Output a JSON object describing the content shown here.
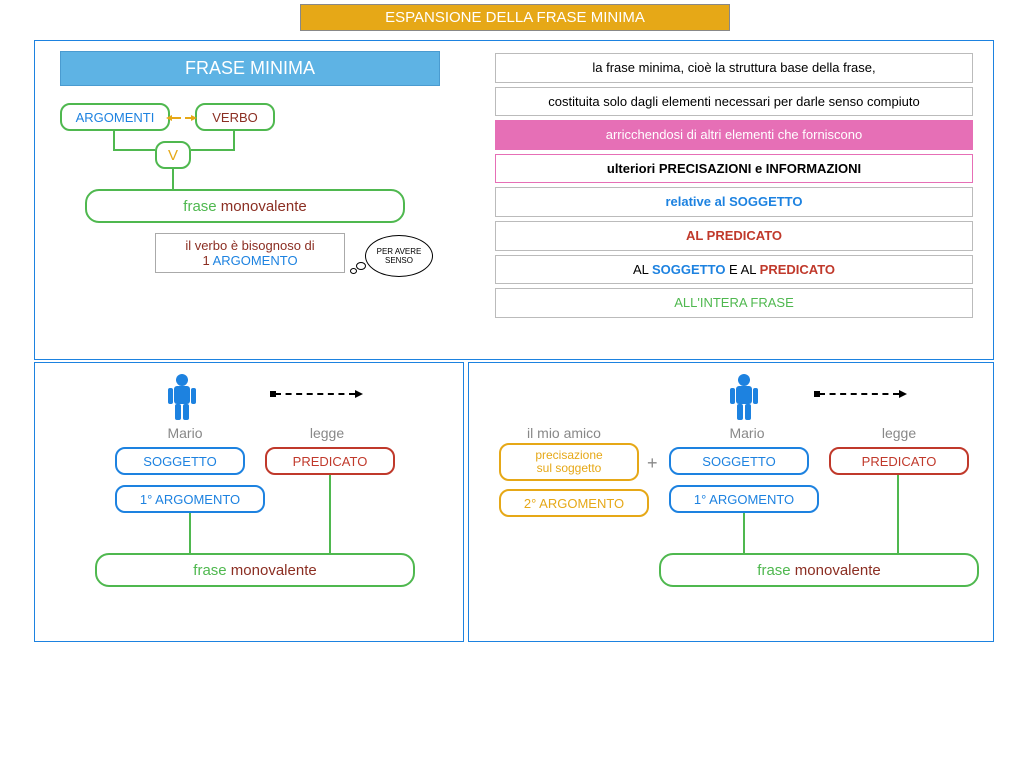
{
  "colors": {
    "banner_bg": "#e6a817",
    "panel_border": "#1d82e0",
    "frase_bg": "#5eb3e4",
    "green": "#4fb84f",
    "blue": "#1d82e0",
    "red": "#c0392b",
    "orange": "#e6a817",
    "pink": "#e66fb6",
    "gray": "#888888",
    "brown": "#8b2e22"
  },
  "title": "ESPANSIONE DELLA FRASE MINIMA",
  "frase_minima_label": "FRASE MINIMA",
  "top_left": {
    "argomenti": "ARGOMENTI",
    "verbo": "VERBO",
    "v": "V",
    "frase_word": "frase",
    "monovalente_word": " monovalente",
    "verb_need_1": "il verbo è bisognoso di",
    "verb_need_2_num": "1",
    "verb_need_2_arg": " ARGOMENTO",
    "speech": "PER AVERE SENSO"
  },
  "info": [
    {
      "html": "la frase minima, cioè la struttura base della frase,",
      "style": ""
    },
    {
      "html": "costituita solo dagli elementi necessari per darle senso compiuto",
      "style": ""
    },
    {
      "html": "arricchendosi di altri elementi che forniscono",
      "style": "pink"
    },
    {
      "html": "<b>ulteriori PRECISAZIONI e INFORMAZIONI</b>",
      "style": "pinkborder"
    },
    {
      "html": "<span class='txt-blue bold'>relative al SOGGETTO</span>",
      "style": ""
    },
    {
      "html": "<span class='txt-red bold'>AL PREDICATO</span>",
      "style": ""
    },
    {
      "html": "AL <span class='txt-blue bold'>SOGGETTO</span> E AL <span class='txt-red bold'>PREDICATO</span>",
      "style": ""
    },
    {
      "html": "<span class='txt-green'>ALL'INTERA FRASE</span>",
      "style": ""
    }
  ],
  "bottom_left": {
    "mario": "Mario",
    "legge": "legge",
    "soggetto": "SOGGETTO",
    "predicato": "PREDICATO",
    "arg1": "1° ARGOMENTO",
    "frase_word": "frase",
    "monovalente_word": " monovalente"
  },
  "bottom_right": {
    "amico": "il mio amico",
    "precis_l1": "precisazione",
    "precis_l2": "sul soggetto",
    "arg2": "2° ARGOMENTO",
    "mario": "Mario",
    "legge": "legge",
    "soggetto": "SOGGETTO",
    "predicato": "PREDICATO",
    "arg1": "1° ARGOMENTO",
    "frase_word": "frase",
    "monovalente_word": " monovalente"
  }
}
